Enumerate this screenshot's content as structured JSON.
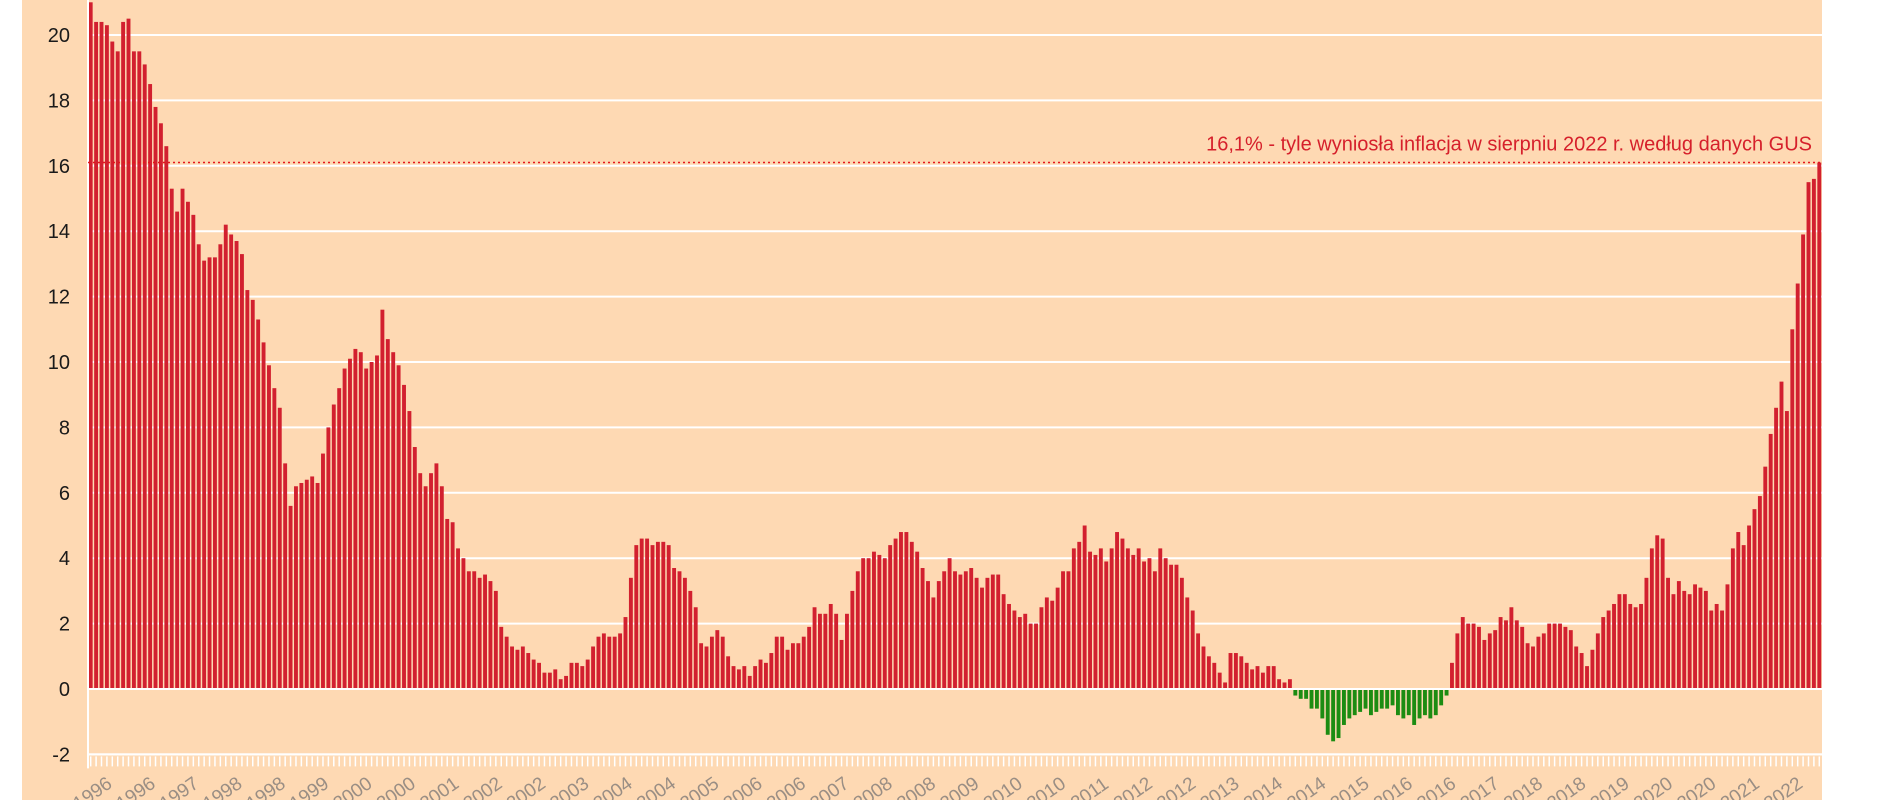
{
  "colors": {
    "background": "#fed9b3",
    "positive_bar": "#d2202f",
    "negative_bar": "#1c8c12",
    "grid": "#ffffff",
    "annotation": "#e2141d",
    "xtick_text": "#9a8e84"
  },
  "chart_data": {
    "type": "bar",
    "ylim": [
      -2,
      21
    ],
    "yticks": [
      -2,
      0,
      2,
      4,
      6,
      8,
      10,
      12,
      14,
      16,
      18,
      20
    ],
    "grid": true,
    "xtick_labels": [
      "1996",
      "1996",
      "1997",
      "1998",
      "1998",
      "1999",
      "2000",
      "2000",
      "2001",
      "2002",
      "2002",
      "2003",
      "2004",
      "2004",
      "2005",
      "2006",
      "2006",
      "2007",
      "2008",
      "2008",
      "2009",
      "2010",
      "2010",
      "2011",
      "2012",
      "2012",
      "2013",
      "2014",
      "2014",
      "2015",
      "2016",
      "2016",
      "2017",
      "2018",
      "2018",
      "2019",
      "2020",
      "2020",
      "2021",
      "2022"
    ],
    "reference_line": {
      "value": 16.1,
      "label": "16,1% - tyle wyniosła inflacja w sierpniu 2022 r. według danych GUS"
    },
    "series": [
      {
        "values": [
          21.0,
          20.4,
          20.4,
          20.3,
          19.8,
          19.5,
          20.4,
          20.5,
          19.5,
          19.5,
          19.1,
          18.5,
          17.8,
          17.3,
          16.6,
          15.3,
          14.6,
          15.3,
          14.9,
          14.5,
          13.6,
          13.1,
          13.2,
          13.2,
          13.6,
          14.2,
          13.9,
          13.7,
          13.3,
          12.2,
          11.9,
          11.3,
          10.6,
          9.9,
          9.2,
          8.6,
          6.9,
          5.6,
          6.2,
          6.3,
          6.4,
          6.5,
          6.3,
          7.2,
          8.0,
          8.7,
          9.2,
          9.8,
          10.1,
          10.4,
          10.3,
          9.8,
          10.0,
          10.2,
          11.6,
          10.7,
          10.3,
          9.9,
          9.3,
          8.5,
          7.4,
          6.6,
          6.2,
          6.6,
          6.9,
          6.2,
          5.2,
          5.1,
          4.3,
          4.0,
          3.6,
          3.6,
          3.4,
          3.5,
          3.3,
          3.0,
          1.9,
          1.6,
          1.3,
          1.2,
          1.3,
          1.1,
          0.9,
          0.8,
          0.5,
          0.5,
          0.6,
          0.3,
          0.4,
          0.8,
          0.8,
          0.7,
          0.9,
          1.3,
          1.6,
          1.7,
          1.6,
          1.6,
          1.7,
          2.2,
          3.4,
          4.4,
          4.6,
          4.6,
          4.4,
          4.5,
          4.5,
          4.4,
          3.7,
          3.6,
          3.4,
          3.0,
          2.5,
          1.4,
          1.3,
          1.6,
          1.8,
          1.6,
          1.0,
          0.7,
          0.6,
          0.7,
          0.4,
          0.7,
          0.9,
          0.8,
          1.1,
          1.6,
          1.6,
          1.2,
          1.4,
          1.4,
          1.6,
          1.9,
          2.5,
          2.3,
          2.3,
          2.6,
          2.3,
          1.5,
          2.3,
          3.0,
          3.6,
          4.0,
          4.0,
          4.2,
          4.1,
          4.0,
          4.4,
          4.6,
          4.8,
          4.8,
          4.5,
          4.2,
          3.7,
          3.3,
          2.8,
          3.3,
          3.6,
          4.0,
          3.6,
          3.5,
          3.6,
          3.7,
          3.4,
          3.1,
          3.4,
          3.5,
          3.5,
          2.9,
          2.6,
          2.4,
          2.2,
          2.3,
          2.0,
          2.0,
          2.5,
          2.8,
          2.7,
          3.1,
          3.6,
          3.6,
          4.3,
          4.5,
          5.0,
          4.2,
          4.1,
          4.3,
          3.9,
          4.3,
          4.8,
          4.6,
          4.3,
          4.1,
          4.3,
          3.9,
          4.0,
          3.6,
          4.3,
          4.0,
          3.8,
          3.8,
          3.4,
          2.8,
          2.4,
          1.7,
          1.3,
          1.0,
          0.8,
          0.5,
          0.2,
          1.1,
          1.1,
          1.0,
          0.8,
          0.6,
          0.7,
          0.5,
          0.7,
          0.7,
          0.3,
          0.2,
          0.3,
          -0.2,
          -0.3,
          -0.3,
          -0.6,
          -0.6,
          -0.9,
          -1.4,
          -1.6,
          -1.5,
          -1.1,
          -0.9,
          -0.8,
          -0.7,
          -0.6,
          -0.8,
          -0.7,
          -0.6,
          -0.6,
          -0.5,
          -0.8,
          -0.9,
          -0.8,
          -1.1,
          -0.9,
          -0.8,
          -0.9,
          -0.8,
          -0.5,
          -0.2,
          0.8,
          1.7,
          2.2,
          2.0,
          2.0,
          1.9,
          1.5,
          1.7,
          1.8,
          2.2,
          2.1,
          2.5,
          2.1,
          1.9,
          1.4,
          1.3,
          1.6,
          1.7,
          2.0,
          2.0,
          2.0,
          1.9,
          1.8,
          1.3,
          1.1,
          0.7,
          1.2,
          1.7,
          2.2,
          2.4,
          2.6,
          2.9,
          2.9,
          2.6,
          2.5,
          2.6,
          3.4,
          4.3,
          4.7,
          4.6,
          3.4,
          2.9,
          3.3,
          3.0,
          2.9,
          3.2,
          3.1,
          3.0,
          2.4,
          2.6,
          2.4,
          3.2,
          4.3,
          4.8,
          4.4,
          5.0,
          5.5,
          5.9,
          6.8,
          7.8,
          8.6,
          9.4,
          8.5,
          11.0,
          12.4,
          13.9,
          15.5,
          15.6,
          16.1
        ]
      }
    ]
  }
}
